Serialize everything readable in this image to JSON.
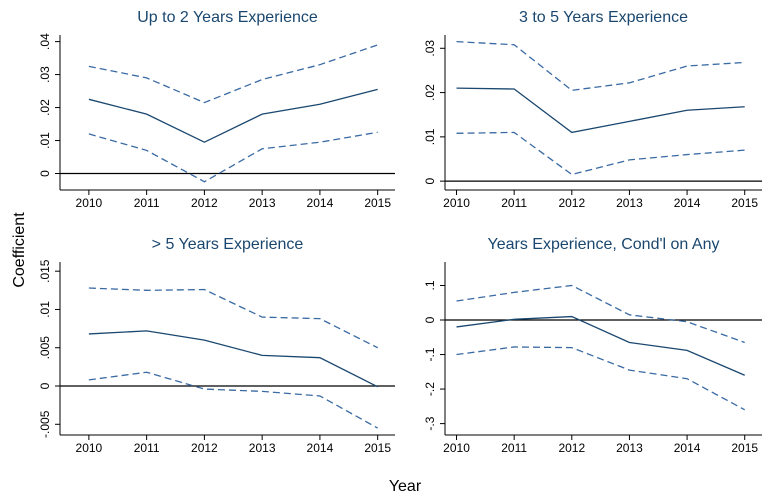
{
  "axis_labels": {
    "y": "Coefficient",
    "x": "Year"
  },
  "chart_data": [
    {
      "type": "line",
      "title": "Up to 2 Years Experience",
      "x": [
        2010,
        2011,
        2012,
        2013,
        2014,
        2015
      ],
      "series": [
        {
          "color": "#1a476f",
          "style": "solid",
          "values": [
            0.0225,
            0.018,
            0.0095,
            0.018,
            0.021,
            0.0255
          ]
        },
        {
          "color": "#3a6aa3",
          "style": "dashed",
          "values": [
            0.0325,
            0.029,
            0.0215,
            0.0285,
            0.033,
            0.039
          ]
        },
        {
          "color": "#3a6aa3",
          "style": "dashed",
          "values": [
            0.012,
            0.007,
            -0.0025,
            0.0075,
            0.0095,
            0.0125
          ]
        }
      ],
      "xlim": [
        2009.5,
        2015.3
      ],
      "xticks": [
        2010,
        2011,
        2012,
        2013,
        2014,
        2015
      ],
      "ylim": [
        -0.005,
        0.042
      ],
      "yticks": [
        0,
        {
          "value": 0.01,
          "label": ".01"
        },
        {
          "value": 0.02,
          "label": ".02"
        },
        {
          "value": 0.03,
          "label": ".03"
        },
        {
          "value": 0.04,
          "label": ".04"
        }
      ],
      "refline": 0
    },
    {
      "type": "line",
      "title": "3 to 5 Years Experience",
      "x": [
        2010,
        2011,
        2012,
        2013,
        2014,
        2015
      ],
      "series": [
        {
          "color": "#1a476f",
          "style": "solid",
          "values": [
            0.021,
            0.0208,
            0.011,
            0.0135,
            0.016,
            0.0168
          ]
        },
        {
          "color": "#3a6aa3",
          "style": "dashed",
          "values": [
            0.0315,
            0.0308,
            0.0205,
            0.0222,
            0.026,
            0.0268
          ]
        },
        {
          "color": "#3a6aa3",
          "style": "dashed",
          "values": [
            0.0108,
            0.011,
            0.0015,
            0.0048,
            0.006,
            0.007
          ]
        }
      ],
      "xlim": [
        2009.8,
        2015.3
      ],
      "xticks": [
        2010,
        2011,
        2012,
        2013,
        2014,
        2015
      ],
      "ylim": [
        -0.002,
        0.033
      ],
      "yticks": [
        0,
        {
          "value": 0.01,
          "label": ".01"
        },
        {
          "value": 0.02,
          "label": ".02"
        },
        {
          "value": 0.03,
          "label": ".03"
        }
      ],
      "refline": 0
    },
    {
      "type": "line",
      "title": "> 5 Years Experience",
      "x": [
        2010,
        2011,
        2012,
        2013,
        2014,
        2015
      ],
      "series": [
        {
          "color": "#1a476f",
          "style": "solid",
          "values": [
            0.0068,
            0.0072,
            0.006,
            0.004,
            0.0037,
            -0.0001
          ]
        },
        {
          "color": "#3a6aa3",
          "style": "dashed",
          "values": [
            0.0128,
            0.0125,
            0.0126,
            0.009,
            0.0088,
            0.005
          ]
        },
        {
          "color": "#3a6aa3",
          "style": "dashed",
          "values": [
            0.0008,
            0.0018,
            -0.0004,
            -0.0007,
            -0.0013,
            -0.0055
          ]
        }
      ],
      "xlim": [
        2009.5,
        2015.3
      ],
      "xticks": [
        2010,
        2011,
        2012,
        2013,
        2014,
        2015
      ],
      "ylim": [
        -0.0064,
        0.0162
      ],
      "yticks": [
        {
          "value": -0.005,
          "label": "-.005"
        },
        0,
        {
          "value": 0.005,
          "label": ".005"
        },
        {
          "value": 0.01,
          "label": ".01"
        },
        {
          "value": 0.015,
          "label": ".015"
        }
      ],
      "refline": 0
    },
    {
      "type": "line",
      "title": "Years Experience, Cond'l on Any",
      "x": [
        2010,
        2011,
        2012,
        2013,
        2014,
        2015
      ],
      "series": [
        {
          "color": "#1a476f",
          "style": "solid",
          "values": [
            -0.02,
            0.002,
            0.01,
            -0.065,
            -0.088,
            -0.16
          ]
        },
        {
          "color": "#3a6aa3",
          "style": "dashed",
          "values": [
            0.055,
            0.08,
            0.1,
            0.015,
            -0.005,
            -0.065
          ]
        },
        {
          "color": "#3a6aa3",
          "style": "dashed",
          "values": [
            -0.1,
            -0.078,
            -0.08,
            -0.145,
            -0.17,
            -0.26
          ]
        }
      ],
      "xlim": [
        2009.8,
        2015.3
      ],
      "xticks": [
        2010,
        2011,
        2012,
        2013,
        2014,
        2015
      ],
      "ylim": [
        -0.333,
        0.168
      ],
      "yticks": [
        {
          "value": -0.3,
          "label": "-.3"
        },
        {
          "value": -0.2,
          "label": "-.2"
        },
        {
          "value": -0.1,
          "label": "-.1"
        },
        0,
        {
          "value": 0.1,
          "label": ".1"
        }
      ],
      "refline": 0
    }
  ]
}
